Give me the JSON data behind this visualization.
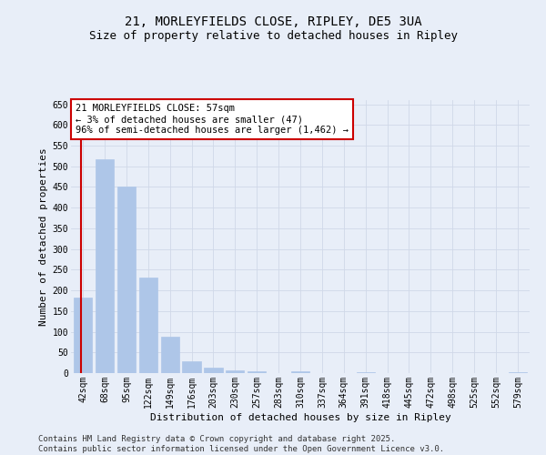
{
  "title_line1": "21, MORLEYFIELDS CLOSE, RIPLEY, DE5 3UA",
  "title_line2": "Size of property relative to detached houses in Ripley",
  "xlabel": "Distribution of detached houses by size in Ripley",
  "ylabel": "Number of detached properties",
  "categories": [
    "42sqm",
    "68sqm",
    "95sqm",
    "122sqm",
    "149sqm",
    "176sqm",
    "203sqm",
    "230sqm",
    "257sqm",
    "283sqm",
    "310sqm",
    "337sqm",
    "364sqm",
    "391sqm",
    "418sqm",
    "445sqm",
    "472sqm",
    "498sqm",
    "525sqm",
    "552sqm",
    "579sqm"
  ],
  "values": [
    183,
    518,
    450,
    232,
    87,
    28,
    14,
    7,
    5,
    0,
    5,
    0,
    0,
    2,
    0,
    0,
    0,
    0,
    0,
    0,
    2
  ],
  "bar_color": "#aec6e8",
  "bar_edge_color": "#aec6e8",
  "annotation_title": "21 MORLEYFIELDS CLOSE: 57sqm",
  "annotation_line2": "← 3% of detached houses are smaller (47)",
  "annotation_line3": "96% of semi-detached houses are larger (1,462) →",
  "annotation_box_color": "#ffffff",
  "annotation_box_edge": "#cc0000",
  "vline_color": "#cc0000",
  "vline_x": -0.07,
  "ylim": [
    0,
    660
  ],
  "yticks": [
    0,
    50,
    100,
    150,
    200,
    250,
    300,
    350,
    400,
    450,
    500,
    550,
    600,
    650
  ],
  "grid_color": "#d0d8e8",
  "background_color": "#e8eef8",
  "footer_line1": "Contains HM Land Registry data © Crown copyright and database right 2025.",
  "footer_line2": "Contains public sector information licensed under the Open Government Licence v3.0.",
  "title_fontsize": 10,
  "subtitle_fontsize": 9,
  "axis_label_fontsize": 8,
  "tick_fontsize": 7,
  "annotation_fontsize": 7.5,
  "footer_fontsize": 6.5
}
